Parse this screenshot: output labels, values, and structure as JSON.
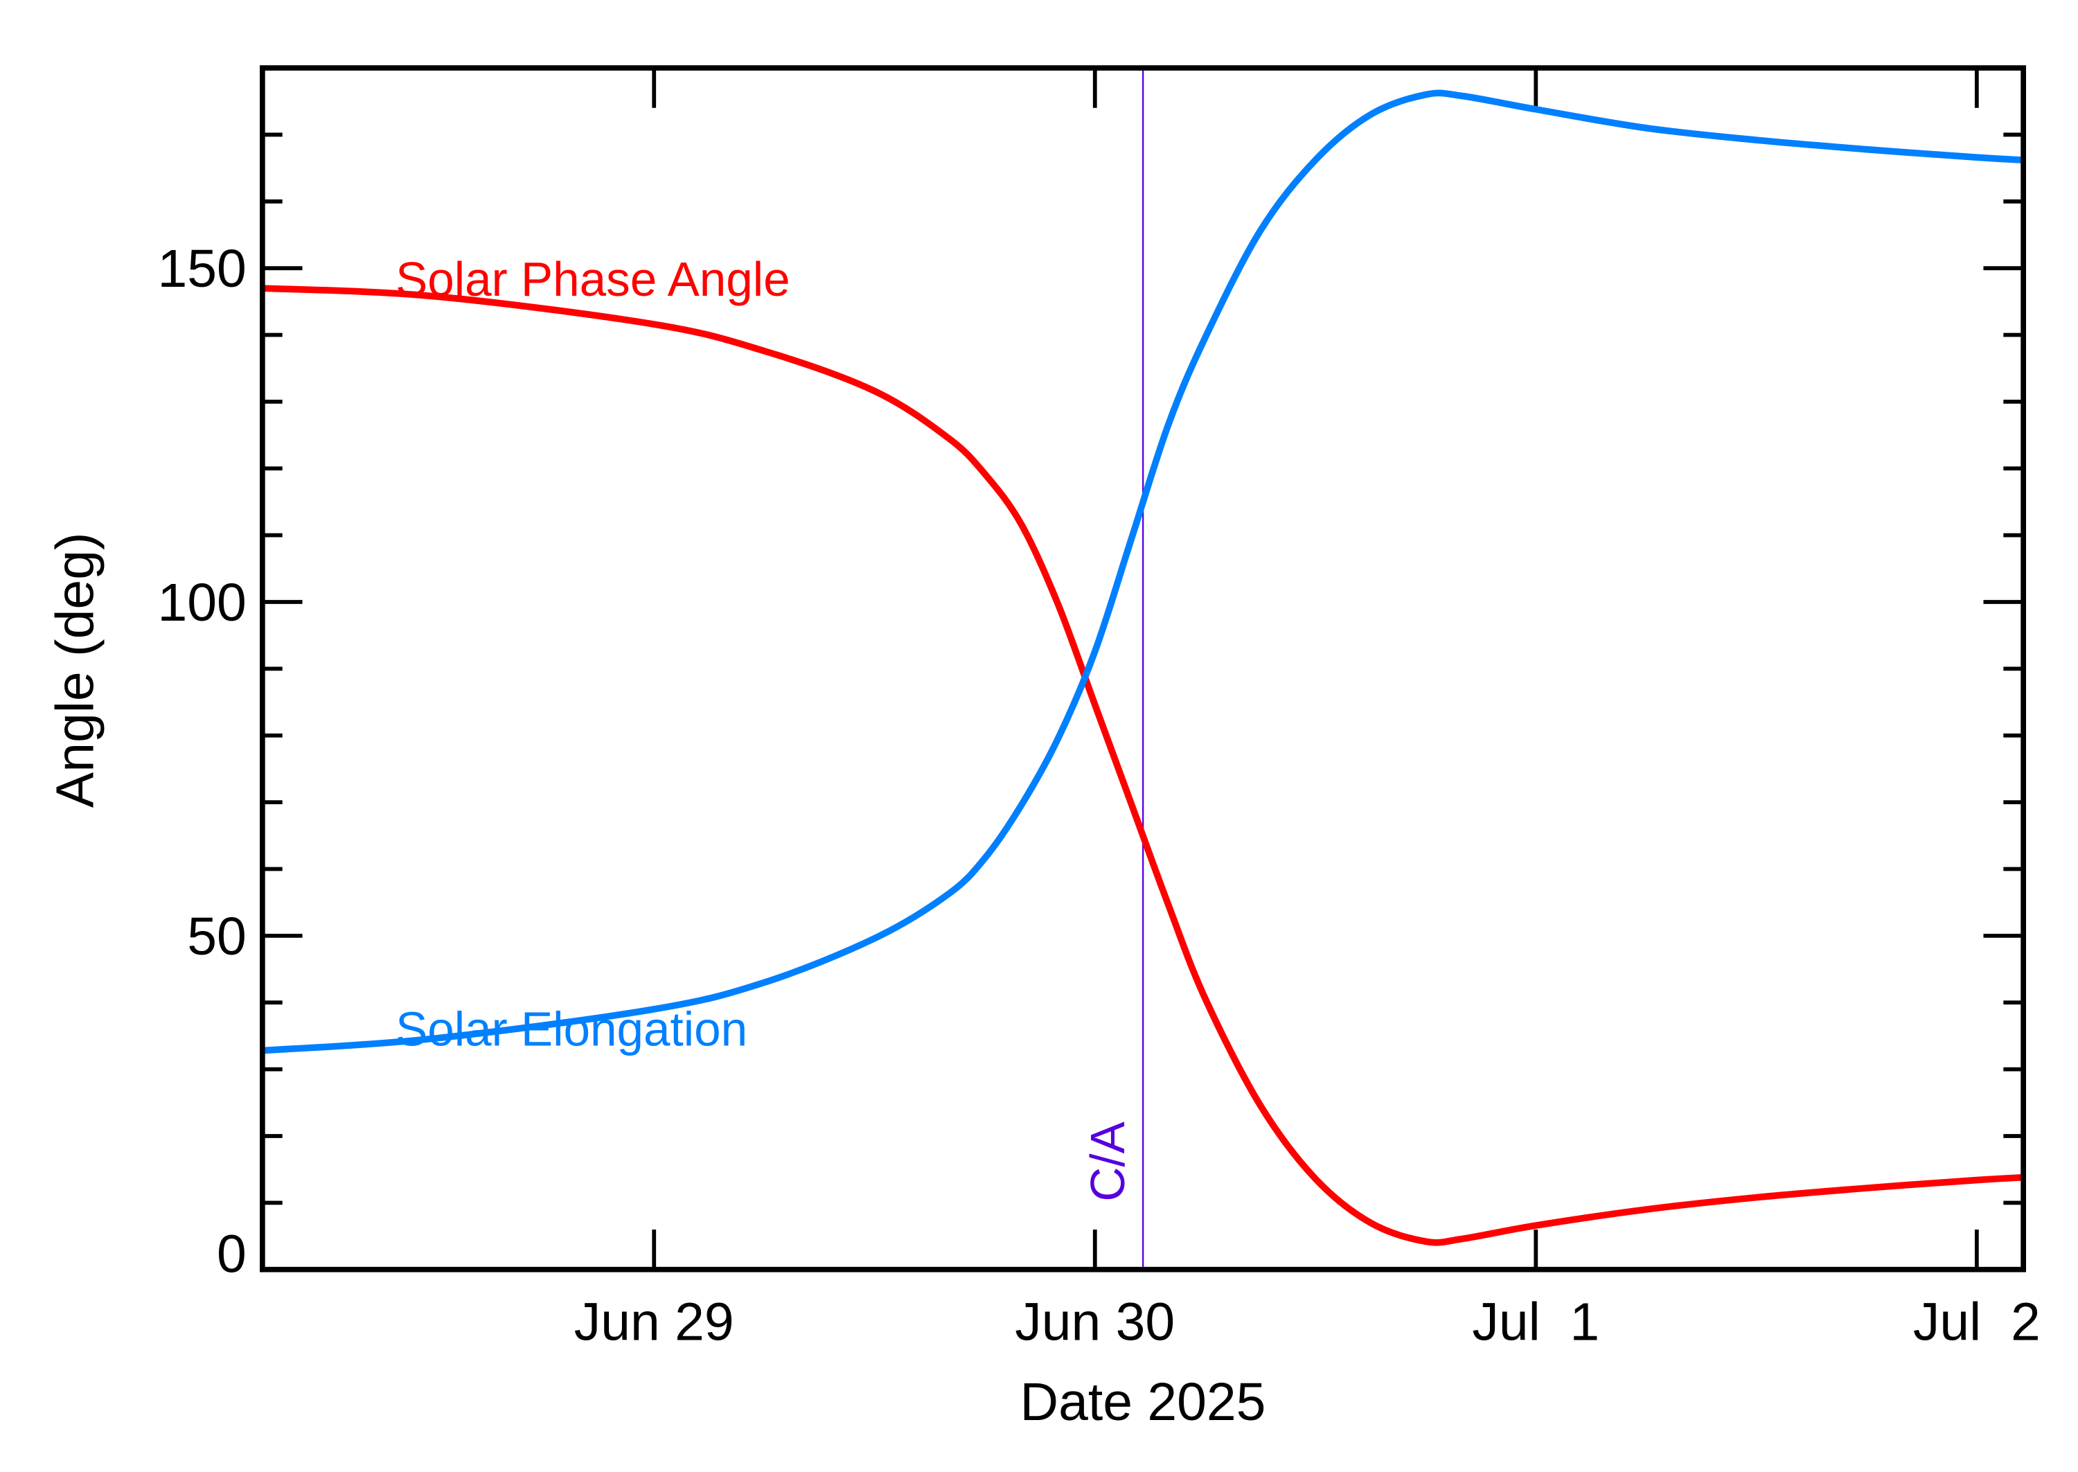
{
  "chart_data": {
    "type": "line",
    "xlabel": "Date 2025",
    "ylabel": "Angle (deg)",
    "xlim": [
      "2025-06-28T02:40Z",
      "2025-07-02T02:32Z"
    ],
    "ylim": [
      0,
      180
    ],
    "x_ticks": [
      {
        "date": "2025-06-29T00:00Z",
        "label": "Jun 29"
      },
      {
        "date": "2025-06-30T00:00Z",
        "label": "Jun 30"
      },
      {
        "date": "2025-07-01T00:00Z",
        "label": "Jul  1"
      },
      {
        "date": "2025-07-02T00:00Z",
        "label": "Jul  2"
      }
    ],
    "y_ticks": [
      0,
      50,
      100,
      150
    ],
    "y_minor_step": 10,
    "grid": false,
    "x": [
      "2025-06-28T02:40Z",
      "2025-06-28T12:00Z",
      "2025-06-29T00:00Z",
      "2025-06-29T06:00Z",
      "2025-06-29T12:00Z",
      "2025-06-29T16:00Z",
      "2025-06-29T18:00Z",
      "2025-06-29T20:00Z",
      "2025-06-29T22:00Z",
      "2025-06-30T00:00Z",
      "2025-06-30T02:00Z",
      "2025-06-30T04:00Z",
      "2025-06-30T06:00Z",
      "2025-06-30T09:00Z",
      "2025-06-30T12:00Z",
      "2025-06-30T15:00Z",
      "2025-06-30T18:00Z",
      "2025-06-30T20:00Z",
      "2025-07-01T00:00Z",
      "2025-07-01T06:00Z",
      "2025-07-01T12:00Z",
      "2025-07-01T18:00Z",
      "2025-07-02T00:00Z",
      "2025-07-02T02:32Z"
    ],
    "series": [
      {
        "name": "Solar Phase Angle",
        "color": "#ff0000",
        "values": [
          147.0,
          145.8,
          141.6,
          137.6,
          131.6,
          124.6,
          119.2,
          111.6,
          99.6,
          84.6,
          69.6,
          54.6,
          40.6,
          24.6,
          13.6,
          7.0,
          4.2,
          4.6,
          6.6,
          9.0,
          10.8,
          12.2,
          13.4,
          13.8
        ]
      },
      {
        "name": "Solar Elongation",
        "color": "#0080ff",
        "values": [
          32.8,
          34.6,
          39.0,
          43.0,
          49.6,
          56.2,
          61.6,
          69.6,
          79.6,
          92.6,
          109.6,
          126.6,
          139.6,
          155.6,
          166.2,
          173.0,
          176.0,
          175.8,
          173.8,
          171.0,
          169.2,
          167.8,
          166.6,
          166.2
        ]
      }
    ],
    "annotations": [
      {
        "text": "C/A",
        "date": "2025-06-30T02:37Z",
        "color": "#5500dd",
        "type": "vertical-line"
      }
    ]
  }
}
